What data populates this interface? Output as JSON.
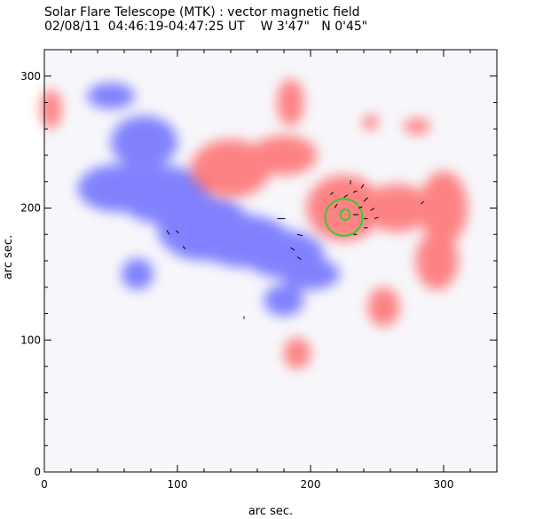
{
  "chart_data": {
    "type": "heatmap",
    "title": "Solar Flare Telescope (MTK) : vector magnetic field",
    "subtitle": "02/08/11  04:46:19-04:47:25 UT    W 3'47\"   N 0'45\"",
    "xlabel": "arc sec.",
    "ylabel": "arc sec.",
    "xlim": [
      0,
      340
    ],
    "ylim": [
      0,
      320
    ],
    "x_ticks": [
      0,
      100,
      200,
      300
    ],
    "y_ticks": [
      0,
      100,
      200,
      300
    ],
    "colors": {
      "positive": "#ff5c5c",
      "negative": "#5a5aff",
      "contour": "#33cc33",
      "vector": "#000000"
    },
    "negative_regions": [
      {
        "x": 55,
        "y": 215,
        "rx": 30,
        "ry": 18
      },
      {
        "x": 90,
        "y": 210,
        "rx": 35,
        "ry": 22
      },
      {
        "x": 120,
        "y": 185,
        "rx": 35,
        "ry": 25
      },
      {
        "x": 150,
        "y": 175,
        "rx": 35,
        "ry": 20
      },
      {
        "x": 180,
        "y": 165,
        "rx": 30,
        "ry": 18
      },
      {
        "x": 200,
        "y": 150,
        "rx": 22,
        "ry": 12
      },
      {
        "x": 75,
        "y": 250,
        "rx": 25,
        "ry": 20
      },
      {
        "x": 70,
        "y": 150,
        "rx": 12,
        "ry": 12
      },
      {
        "x": 180,
        "y": 130,
        "rx": 15,
        "ry": 12
      },
      {
        "x": 50,
        "y": 285,
        "rx": 18,
        "ry": 10
      }
    ],
    "positive_regions": [
      {
        "x": 140,
        "y": 230,
        "rx": 30,
        "ry": 22
      },
      {
        "x": 180,
        "y": 240,
        "rx": 25,
        "ry": 15
      },
      {
        "x": 225,
        "y": 200,
        "rx": 28,
        "ry": 25
      },
      {
        "x": 265,
        "y": 200,
        "rx": 25,
        "ry": 18
      },
      {
        "x": 300,
        "y": 200,
        "rx": 18,
        "ry": 28
      },
      {
        "x": 295,
        "y": 160,
        "rx": 16,
        "ry": 22
      },
      {
        "x": 185,
        "y": 280,
        "rx": 10,
        "ry": 18
      },
      {
        "x": 190,
        "y": 90,
        "rx": 10,
        "ry": 12
      },
      {
        "x": 255,
        "y": 125,
        "rx": 12,
        "ry": 15
      },
      {
        "x": 280,
        "y": 262,
        "rx": 10,
        "ry": 6
      },
      {
        "x": 5,
        "y": 275,
        "rx": 8,
        "ry": 15
      },
      {
        "x": 245,
        "y": 265,
        "rx": 6,
        "ry": 6
      }
    ],
    "contours": [
      {
        "x": 225,
        "y": 193,
        "rx": 14,
        "ry": 14
      },
      {
        "x": 226,
        "y": 195,
        "rx": 3.5,
        "ry": 4
      }
    ],
    "vectors": [
      {
        "x": 92,
        "y": 183,
        "dx": 2,
        "dy": -3
      },
      {
        "x": 99,
        "y": 183,
        "dx": 2,
        "dy": -2
      },
      {
        "x": 104,
        "y": 171,
        "dx": 2,
        "dy": -2
      },
      {
        "x": 150,
        "y": 118,
        "dx": 0,
        "dy": -2
      },
      {
        "x": 175,
        "y": 192,
        "dx": 6,
        "dy": 0
      },
      {
        "x": 190,
        "y": 180,
        "dx": 4,
        "dy": -1
      },
      {
        "x": 185,
        "y": 170,
        "dx": 3,
        "dy": -2
      },
      {
        "x": 190,
        "y": 163,
        "dx": 3,
        "dy": -2
      },
      {
        "x": 215,
        "y": 210,
        "dx": 2,
        "dy": 2
      },
      {
        "x": 218,
        "y": 200,
        "dx": 2,
        "dy": 3
      },
      {
        "x": 225,
        "y": 208,
        "dx": 3,
        "dy": 2
      },
      {
        "x": 232,
        "y": 212,
        "dx": 3,
        "dy": 1
      },
      {
        "x": 238,
        "y": 215,
        "dx": 2,
        "dy": 3
      },
      {
        "x": 240,
        "y": 205,
        "dx": 3,
        "dy": 3
      },
      {
        "x": 236,
        "y": 200,
        "dx": 3,
        "dy": 1
      },
      {
        "x": 232,
        "y": 195,
        "dx": 4,
        "dy": 0
      },
      {
        "x": 240,
        "y": 192,
        "dx": 3,
        "dy": 0
      },
      {
        "x": 240,
        "y": 185,
        "dx": 3,
        "dy": 0
      },
      {
        "x": 245,
        "y": 198,
        "dx": 3,
        "dy": 2
      },
      {
        "x": 248,
        "y": 192,
        "dx": 3,
        "dy": 1
      },
      {
        "x": 232,
        "y": 180,
        "dx": 3,
        "dy": 0
      },
      {
        "x": 283,
        "y": 203,
        "dx": 2,
        "dy": 2
      },
      {
        "x": 230,
        "y": 218,
        "dx": 0,
        "dy": 3
      }
    ]
  }
}
